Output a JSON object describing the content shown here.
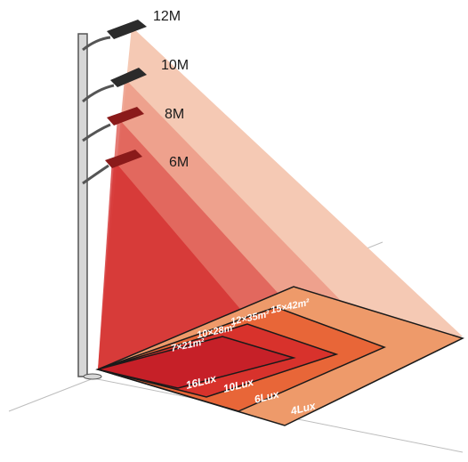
{
  "heights": [
    {
      "label": "12M"
    },
    {
      "label": "10M"
    },
    {
      "label": "8M"
    },
    {
      "label": "6M"
    }
  ],
  "areas": [
    {
      "text": "15×42m²"
    },
    {
      "text": "12×35m²"
    },
    {
      "text": "10×28m²"
    },
    {
      "text": "7×21m²"
    }
  ],
  "illuminance": [
    {
      "text": "16Lux"
    },
    {
      "text": "10Lux"
    },
    {
      "text": "6Lux"
    },
    {
      "text": "4Lux"
    }
  ],
  "colors": {
    "beam_12m": "#f5c9b4",
    "beam_10m": "#ec9a86",
    "beam_8m": "#de5a52",
    "beam_6m": "#d42f2f",
    "zone_4lux": "#ee9a6a",
    "zone_6lux": "#e86638",
    "zone_10lux": "#d8322c",
    "zone_16lux": "#c62028",
    "pole": "#d7d7d7",
    "fixture": "#2b2b2b"
  }
}
